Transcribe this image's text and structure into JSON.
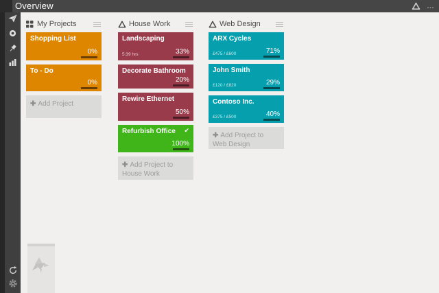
{
  "topbar": {
    "title": "Overview",
    "more_label": "…"
  },
  "icons": {
    "plus": "✚",
    "check": "✔"
  },
  "colors": {
    "topbar": "#464646",
    "sidebar": "#3f3f3f",
    "background": "#f1f0ee",
    "orange": "#de8600",
    "maroon": "#9a3b4c",
    "green": "#3fb51a",
    "teal": "#059fad",
    "progress_fill": "#79b42a",
    "add_tile": "#dbdbd9"
  },
  "sidebar": {
    "items": [
      "send",
      "target",
      "pin",
      "chart"
    ],
    "bottom_items": [
      "refresh",
      "settings"
    ]
  },
  "columns": [
    {
      "title": "My Projects",
      "cards": [
        {
          "title": "Shopping List",
          "percent_label": "0%",
          "progress": 0
        },
        {
          "title": "To - Do",
          "percent_label": "0%",
          "progress": 0
        }
      ],
      "add_label": "Add Project"
    },
    {
      "title": "House Work",
      "cards": [
        {
          "title": "Landscaping",
          "subtext": "5:39 hrs",
          "percent_label": "33%",
          "progress": 33
        },
        {
          "title": "Decorate Bathroom",
          "percent_label": "20%",
          "progress": 20
        },
        {
          "title": "Rewire Ethernet",
          "percent_label": "50%",
          "progress": 50
        },
        {
          "title": "Refurbish Office",
          "percent_label": "100%",
          "progress": 100,
          "completed": true
        }
      ],
      "add_label": "Add Project to House Work"
    },
    {
      "title": "Web Design",
      "cards": [
        {
          "title": "ARX Cycles",
          "subtext": "£475 / £600",
          "percent_label": "71%",
          "progress": 71
        },
        {
          "title": "John Smith",
          "subtext": "£120 / £820",
          "percent_label": "29%",
          "progress": 29
        },
        {
          "title": "Contoso Inc.",
          "subtext": "£375 / £500",
          "percent_label": "40%",
          "progress": 40
        }
      ],
      "add_label": "Add Project to Web Design"
    }
  ]
}
